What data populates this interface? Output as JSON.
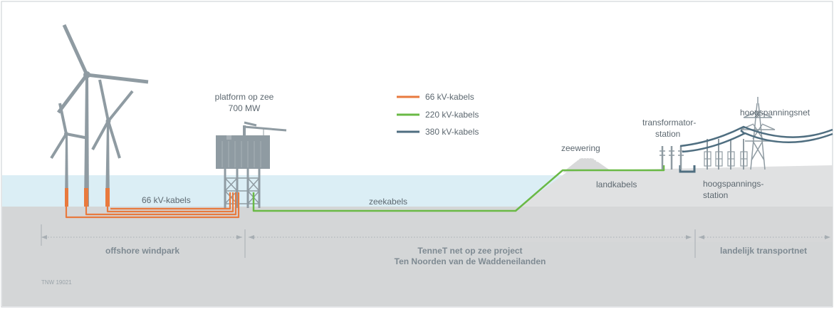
{
  "labels": {
    "platform_line1": "platform op zee",
    "platform_line2": "700 MW",
    "hoogspanningsnet": "hoogspanningsnet",
    "transformator_line1": "transformator-",
    "transformator_line2": "station",
    "zeewering": "zeewering",
    "landkabels": "landkabels",
    "hoogspannings_line1": "hoogspannings-",
    "hoogspannings_line2": "station",
    "kabels_66": "66 kV-kabels",
    "zeekabels": "zeekabels",
    "code": "TNW 19021"
  },
  "legend": [
    {
      "label": "66 kV-kabels",
      "color": "#e87a3e"
    },
    {
      "label": "220 kV-kabels",
      "color": "#6ab946"
    },
    {
      "label": "380 kV-kabels",
      "color": "#4f6e80"
    }
  ],
  "zones": {
    "offshore": "offshore windpark",
    "project_line1": "TenneT net op zee project",
    "project_line2": "Ten Noorden van de Waddeneilanden",
    "landelijk": "landelijk transportnet"
  },
  "colors": {
    "sea": "#dbeef5",
    "seabed": "#d4d6d7",
    "land": "#e0e1e2",
    "structure": "#8f9ba2",
    "cable_66": "#e87a3e",
    "cable_220": "#6ab946",
    "cable_380": "#4f6e80"
  },
  "icons": [
    "wind-turbine-icon",
    "offshore-platform-icon",
    "pylon-icon",
    "dike-icon"
  ]
}
